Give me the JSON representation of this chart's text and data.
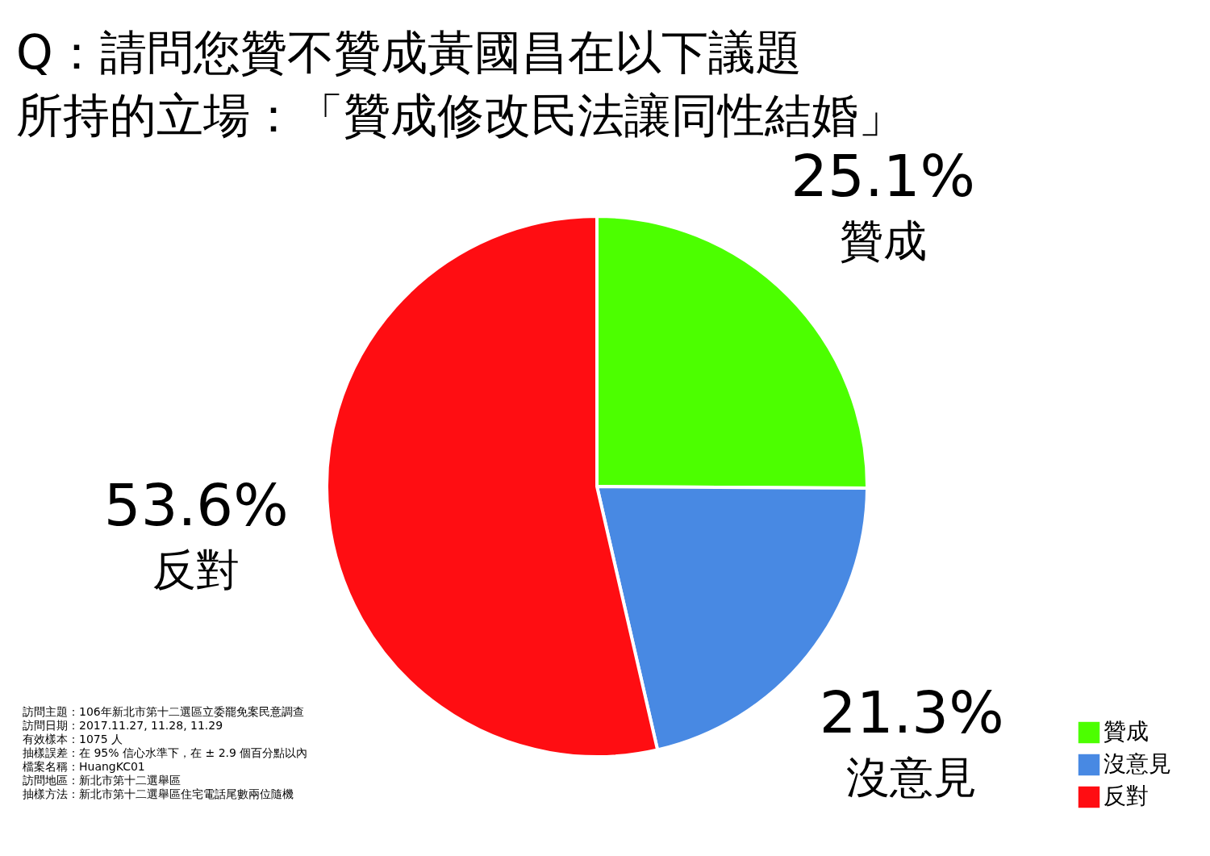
{
  "chart_data": {
    "type": "pie",
    "title": "Q：請問您贊不贊成黃國昌在以下議題",
    "subtitle": "所持的立場：「贊成修改民法讓同性結婚」",
    "categories": [
      "贊成",
      "沒意見",
      "反對"
    ],
    "values": [
      25.1,
      21.3,
      53.6
    ],
    "colors": [
      "#4cff00",
      "#4889e3",
      "#ff0d12"
    ],
    "value_labels": [
      "25.1%",
      "21.3%",
      "53.6%"
    ],
    "legend": "bottom right",
    "annotations": [
      "訪問主題：106年新北市第十二選區立委罷免案民意調查",
      "訪問日期：2017.11.27, 11.28, 11.29",
      "有效樣本：1075 人",
      "抽樣誤差：在 95% 信心水準下，在 ± 2.9 個百分點以內",
      "檔案名稱：HuangKC01",
      "訪問地區：新北市第十二選舉區",
      "抽樣方法：新北市第十二選舉區住宅電話尾數兩位隨機"
    ]
  }
}
